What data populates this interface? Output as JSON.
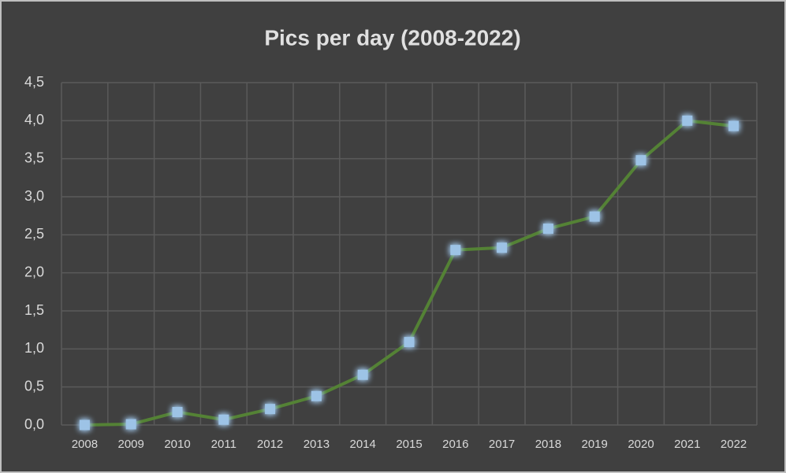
{
  "chart_data": {
    "type": "line",
    "title": "Pics per day (2008-2022)",
    "categories": [
      "2008",
      "2009",
      "2010",
      "2011",
      "2012",
      "2013",
      "2014",
      "2015",
      "2016",
      "2017",
      "2018",
      "2019",
      "2020",
      "2021",
      "2022"
    ],
    "series": [
      {
        "name": "Pics per day",
        "color": "#548235",
        "marker_color": "#9dc3e6",
        "values": [
          0.0,
          0.01,
          0.17,
          0.07,
          0.21,
          0.38,
          0.66,
          1.09,
          2.3,
          2.33,
          2.58,
          2.74,
          3.48,
          4.0,
          3.93
        ]
      }
    ],
    "ylim": [
      0,
      4.5
    ],
    "yticks": [
      {
        "value": 0,
        "label": "0,0"
      },
      {
        "value": 0.5,
        "label": "0,5"
      },
      {
        "value": 1,
        "label": "1,0"
      },
      {
        "value": 1.5,
        "label": "1,5"
      },
      {
        "value": 2,
        "label": "2,0"
      },
      {
        "value": 2.5,
        "label": "2,5"
      },
      {
        "value": 3,
        "label": "3,0"
      },
      {
        "value": 3.5,
        "label": "3,5"
      },
      {
        "value": 4,
        "label": "4,0"
      },
      {
        "value": 4.5,
        "label": "4,5"
      }
    ],
    "grid": true
  }
}
